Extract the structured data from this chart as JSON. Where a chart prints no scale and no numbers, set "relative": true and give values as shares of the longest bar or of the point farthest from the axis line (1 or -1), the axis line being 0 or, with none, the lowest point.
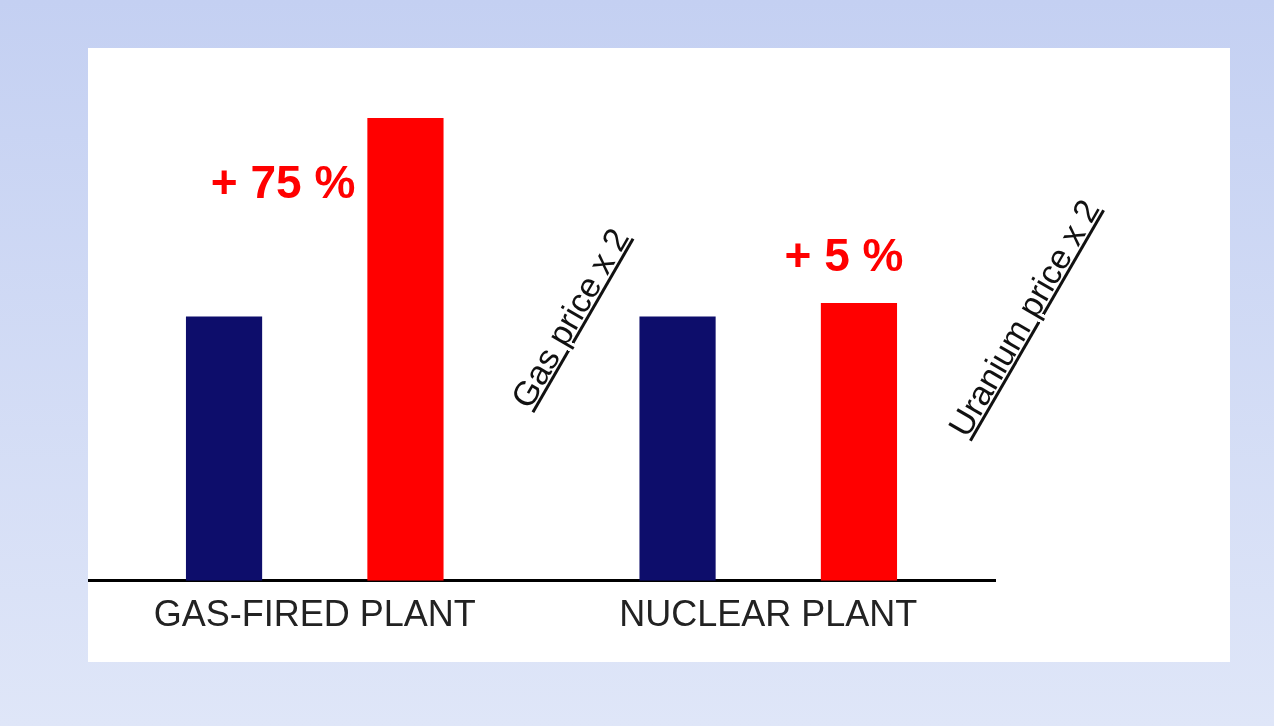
{
  "chart_data": {
    "type": "bar",
    "relative": true,
    "categories": [
      "GAS-FIRED PLANT",
      "NUCLEAR PLANT"
    ],
    "series": [
      {
        "color": "#0d0d6b",
        "values": [
          0.571,
          0.571
        ]
      },
      {
        "color": "#ff0000",
        "values": [
          1,
          0.6
        ]
      }
    ],
    "annotations": [
      "+ 75 %",
      "+ 5 %",
      "Gas price x 2",
      "Uranium price x 2"
    ],
    "legend": false,
    "grid": false
  }
}
